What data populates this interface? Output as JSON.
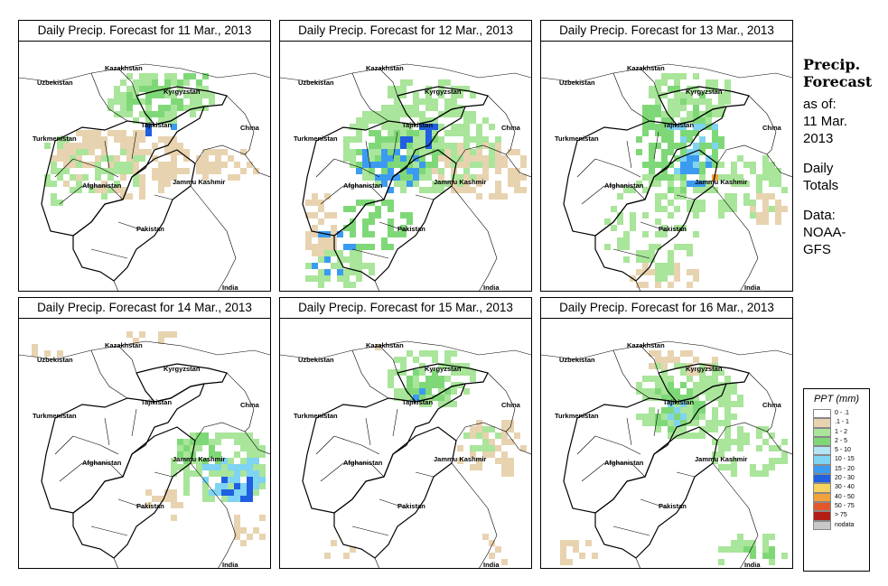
{
  "colors": {
    "trace": "#e8d3b0",
    "light": "#a9e59a",
    "mod": "#7fd877",
    "cyan": "#7fd3f3",
    "blue": "#3b9bf0",
    "dblue": "#1f5fe0",
    "orange": "#f2a23a",
    "red": "#c2291d"
  },
  "panel_title_prefix": "Daily Precip. Forecast for",
  "panels": [
    {
      "title": "Daily Precip. Forecast for  11 Mar., 2013",
      "date": "11 Mar., 2013"
    },
    {
      "title": "Daily Precip. Forecast for  12 Mar., 2013",
      "date": "12 Mar., 2013"
    },
    {
      "title": "Daily Precip. Forecast for  13 Mar., 2013",
      "date": "13 Mar., 2013"
    },
    {
      "title": "Daily Precip. Forecast for  14 Mar., 2013",
      "date": "14 Mar., 2013"
    },
    {
      "title": "Daily Precip. Forecast for  15 Mar., 2013",
      "date": "15 Mar., 2013"
    },
    {
      "title": "Daily Precip. Forecast for  16 Mar., 2013",
      "date": "16 Mar., 2013"
    }
  ],
  "map_labels": {
    "uzbekistan": "Uzbekistan",
    "kazakhstan": "Kazakhstan",
    "kyrgyzstan": "Kyrgyzstan",
    "tajikistan": "Tajikistan",
    "turkmenistan": "Turkmenistan",
    "china": "China",
    "afghanistan": "Afghanistan",
    "jammu_kashmir": "Jammu Kashmir",
    "pakistan": "Pakistan",
    "india": "India"
  },
  "sidebar": {
    "heading_line1": "Precip.",
    "heading_line2": "Forecast",
    "asof_line1": "as of:",
    "asof_line2": "11 Mar.",
    "asof_line3": "2013",
    "totals_line1": "Daily",
    "totals_line2": "Totals",
    "source_line1": "Data:",
    "source_line2": "NOAA-",
    "source_line3": "GFS"
  },
  "legend": {
    "title": "PPT (mm)",
    "items": [
      {
        "label": "0 - .1",
        "color": "#ffffff"
      },
      {
        "label": ".1 - 1",
        "color": "#e8d3b0"
      },
      {
        "label": "1 - 2",
        "color": "#a9e59a"
      },
      {
        "label": "2 - 5",
        "color": "#7fd877"
      },
      {
        "label": "5 - 10",
        "color": "#b5e4f6"
      },
      {
        "label": "10 - 15",
        "color": "#7fd3f3"
      },
      {
        "label": "15 - 20",
        "color": "#3b9bf0"
      },
      {
        "label": "20 - 30",
        "color": "#1f5fe0"
      },
      {
        "label": "30 - 40",
        "color": "#f5d35e"
      },
      {
        "label": "40 - 50",
        "color": "#f2a23a"
      },
      {
        "label": "50 - 75",
        "color": "#e3572b"
      },
      {
        "label": "> 75",
        "color": "#b21e14"
      },
      {
        "label": "nodata",
        "color": "#c8c8c8"
      }
    ]
  }
}
